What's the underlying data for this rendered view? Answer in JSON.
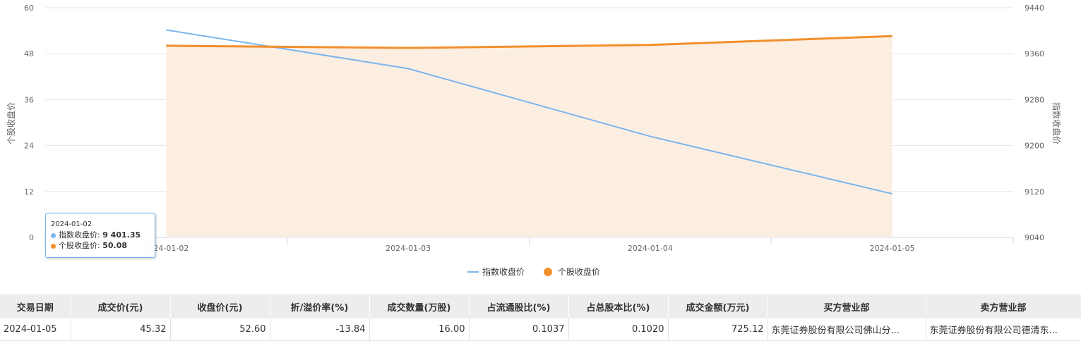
{
  "chart_data": {
    "type": "line",
    "categories": [
      "2024-01-02",
      "2024-01-03",
      "2024-01-04",
      "2024-01-05"
    ],
    "series": [
      {
        "name": "指数收盘价",
        "axis": "right",
        "color": "#7cb5ec",
        "values": [
          9401.35,
          9334,
          9216,
          9116
        ]
      },
      {
        "name": "个股收盘价",
        "axis": "left",
        "color": "#f28f2c",
        "area": true,
        "values": [
          50.08,
          49.5,
          50.3,
          52.6
        ]
      }
    ],
    "y_left": {
      "label": "个股收盘价",
      "range": [
        0,
        60
      ],
      "ticks": [
        0,
        12,
        24,
        36,
        48,
        60
      ]
    },
    "y_right": {
      "label": "指数收盘价",
      "range": [
        9040,
        9440
      ],
      "ticks": [
        9040,
        9120,
        9200,
        9280,
        9360,
        9440
      ]
    },
    "grid": true,
    "legend_position": "bottom-center"
  },
  "tooltip": {
    "date": "2024-01-02",
    "index_label": "指数收盘价: ",
    "index_value": "9 401.35",
    "stock_label": "个股收盘价: ",
    "stock_value": "50.08"
  },
  "table": {
    "headers": [
      "交易日期",
      "成交价(元)",
      "收盘价(元)",
      "折/溢价率(%)",
      "成交数量(万股)",
      "占流通股比(%)",
      "占总股本比(%)",
      "成交金额(万元)",
      "买方营业部",
      "卖方营业部"
    ],
    "rows": [
      [
        "2024-01-05",
        "45.32",
        "52.60",
        "-13.84",
        "16.00",
        "0.1037",
        "0.1020",
        "725.12",
        "东莞证券股份有限公司佛山分...",
        "东莞证券股份有限公司德清东..."
      ]
    ]
  }
}
